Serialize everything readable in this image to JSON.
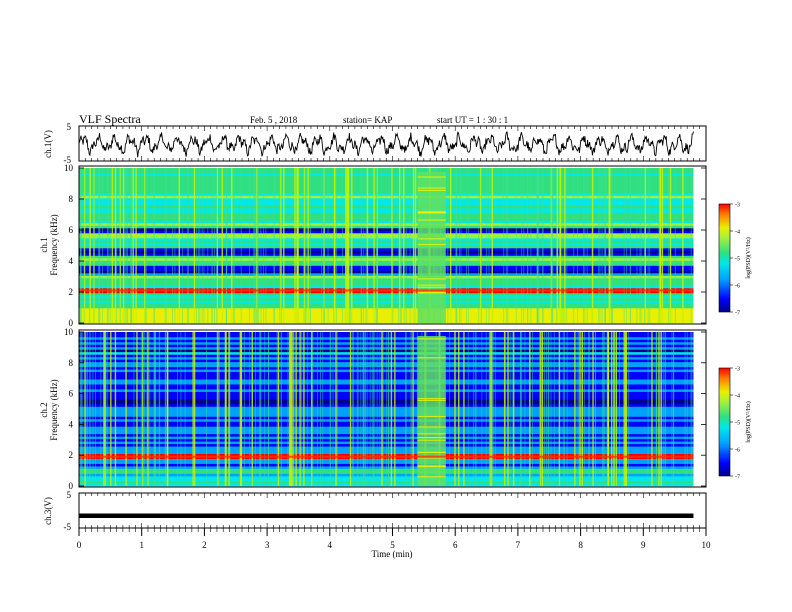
{
  "header": {
    "title": "VLF  Spectra",
    "date": "Feb. 5  , 2018",
    "station": "station= KAP",
    "start": "start  UT  =   1 : 30 : 1"
  },
  "chart_data": [
    {
      "type": "line",
      "panel": "ch1-waveform",
      "ylabel": "ch.1(V)",
      "ylim": [
        -5,
        5
      ],
      "yticks": [
        "5",
        "-5"
      ],
      "xlim": [
        0,
        10
      ],
      "approx": {
        "mean": 0.0,
        "amplitude_range": [
          -4.5,
          3.5
        ],
        "quasi_period_min": 0.25
      }
    },
    {
      "type": "heatmap",
      "panel": "ch1-spectrogram",
      "ylabel": "ch.1\nFrequency  (kHz)",
      "ylim": [
        0,
        10
      ],
      "yticks": [
        "0",
        "2",
        "4",
        "6",
        "8",
        "10"
      ],
      "xlim": [
        0,
        9.8
      ],
      "colorbar": {
        "label": "log(PSD)(V²/Hz)",
        "range": [
          -7,
          -3
        ],
        "ticks": [
          "-3",
          "-4",
          "-5",
          "-6",
          "-7"
        ]
      },
      "features": {
        "strong_band_kHz": 2.1,
        "quiet_bands_kHz": [
          [
            3.0,
            3.7
          ],
          [
            4.3,
            4.9
          ],
          [
            5.8,
            6.2
          ]
        ],
        "noise_burst_min": [
          5.4,
          5.85
        ]
      }
    },
    {
      "type": "heatmap",
      "panel": "ch2-spectrogram",
      "ylabel": "ch.2\nFrequency  (kHz)",
      "ylim": [
        0,
        10
      ],
      "yticks": [
        "0",
        "2",
        "4",
        "6",
        "8",
        "10"
      ],
      "xlim": [
        0,
        9.8
      ],
      "colorbar": {
        "label": "log(PSD)(V²/Hz)",
        "range": [
          -7,
          -3
        ],
        "ticks": [
          "-3",
          "-4",
          "-5",
          "-6",
          "-7"
        ]
      },
      "features": {
        "strong_band_kHz": 1.9,
        "noise_burst_min": [
          5.4,
          5.85
        ]
      }
    },
    {
      "type": "line",
      "panel": "ch3-waveform",
      "ylabel": "ch.3(V)",
      "ylim": [
        -5,
        5
      ],
      "yticks": [
        "5",
        "-5"
      ],
      "xlim": [
        0,
        9.8
      ],
      "values_constant": -1.5
    }
  ],
  "xaxis": {
    "label": "Time  (min)",
    "range": [
      0,
      10
    ],
    "ticks": [
      "0",
      "1",
      "2",
      "3",
      "4",
      "5",
      "6",
      "7",
      "8",
      "9",
      "10"
    ]
  },
  "colors": {
    "axis": "#000000",
    "colormap": [
      "#00008c",
      "#0000ff",
      "#00a0ff",
      "#00e8e8",
      "#30e080",
      "#a0f040",
      "#e8f000",
      "#ff9000",
      "#ff0000"
    ]
  }
}
